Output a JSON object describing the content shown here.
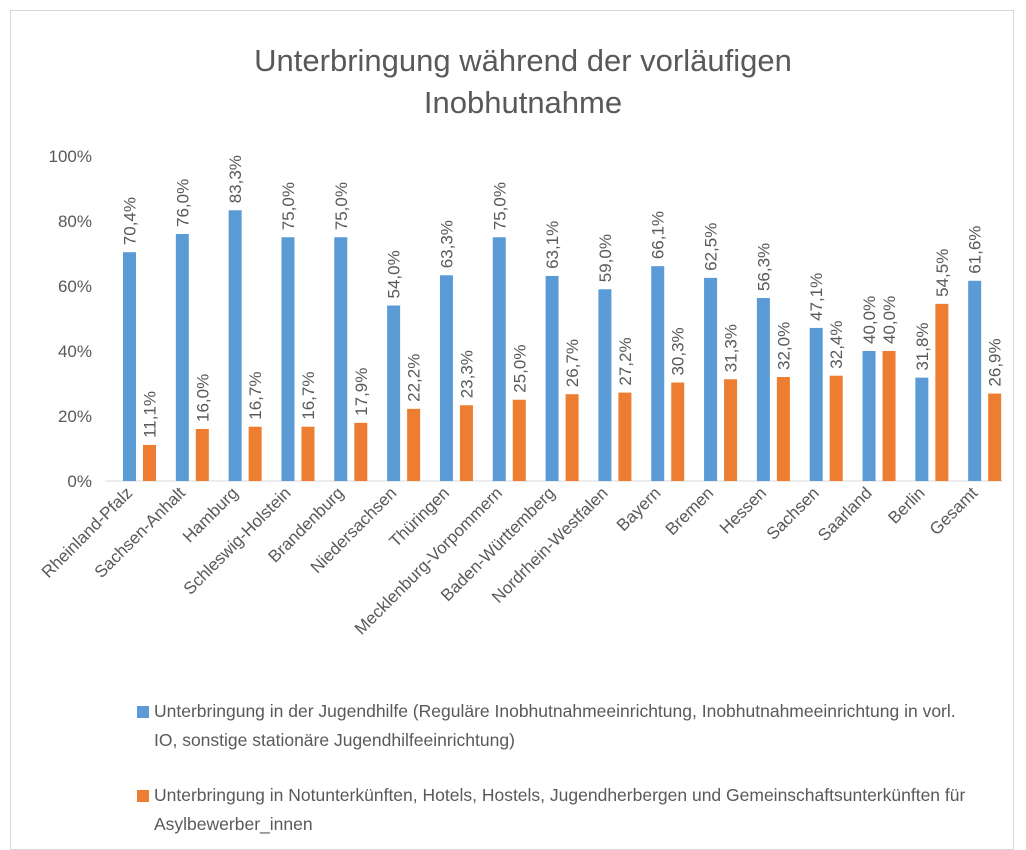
{
  "chart_data": {
    "type": "bar",
    "title": "Unterbringung während der vorläufigen Inobhutnahme",
    "categories": [
      "Rheinland-Pfalz",
      "Sachsen-Anhalt",
      "Hamburg",
      "Schleswig-Holstein",
      "Brandenburg",
      "Niedersachsen",
      "Thüringen",
      "Mecklenburg-Vorpommern",
      "Baden-Württemberg",
      "Nordrhein-Westfalen",
      "Bayern",
      "Bremen",
      "Hessen",
      "Sachsen",
      "Saarland",
      "Berlin",
      "Gesamt"
    ],
    "series": [
      {
        "name": "Unterbringung in der Jugendhilfe (Reguläre Inobhutnahmeeinrichtung, Inobhutnahmeeinrichtung in vorl. IO, sonstige stationäre Jugendhilfeeinrichtung)",
        "color": "#5b9bd5",
        "values": [
          70.4,
          76.0,
          83.3,
          75.0,
          75.0,
          54.0,
          63.3,
          75.0,
          63.1,
          59.0,
          66.1,
          62.5,
          56.3,
          47.1,
          40.0,
          31.8,
          61.6
        ],
        "value_labels": [
          "70,4%",
          "76,0%",
          "83,3%",
          "75,0%",
          "75,0%",
          "54,0%",
          "63,3%",
          "75,0%",
          "63,1%",
          "59,0%",
          "66,1%",
          "62,5%",
          "56,3%",
          "47,1%",
          "40,0%",
          "31,8%",
          "61,6%"
        ]
      },
      {
        "name": "Unterbringung in Notunterkünften, Hotels, Hostels, Jugendherbergen und Gemeinschaftsunterkünften für Asylbewerber_innen",
        "color": "#ed7d31",
        "values": [
          11.1,
          16.0,
          16.7,
          16.7,
          17.9,
          22.2,
          23.3,
          25.0,
          26.7,
          27.2,
          30.3,
          31.3,
          32.0,
          32.4,
          40.0,
          54.5,
          26.9
        ],
        "value_labels": [
          "11,1%",
          "16,0%",
          "16,7%",
          "16,7%",
          "17,9%",
          "22,2%",
          "23,3%",
          "25,0%",
          "26,7%",
          "27,2%",
          "30,3%",
          "31,3%",
          "32,0%",
          "32,4%",
          "40,0%",
          "54,5%",
          "26,9%"
        ]
      }
    ],
    "ylim": [
      0,
      100
    ],
    "yticks": [
      {
        "value": 0,
        "label": "0%"
      },
      {
        "value": 20,
        "label": "20%"
      },
      {
        "value": 40,
        "label": "40%"
      },
      {
        "value": 60,
        "label": "60%"
      },
      {
        "value": 80,
        "label": "80%"
      },
      {
        "value": 100,
        "label": "100%"
      }
    ],
    "grid": false
  }
}
